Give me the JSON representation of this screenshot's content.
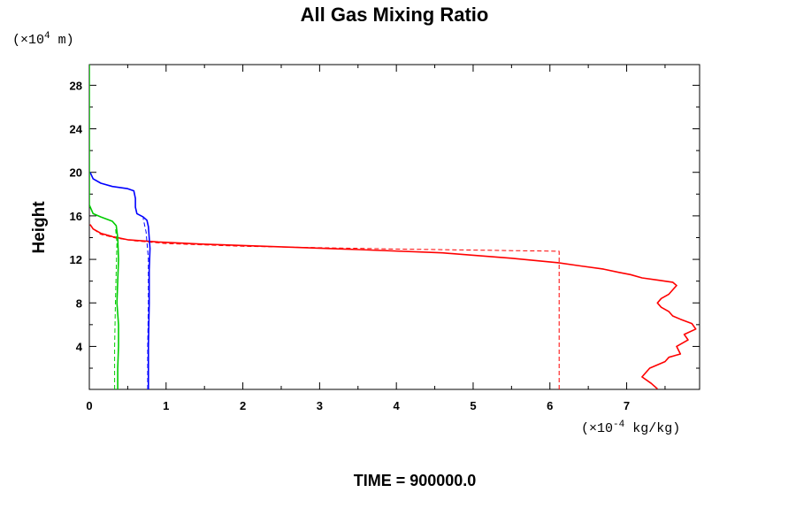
{
  "chart_data": {
    "type": "line",
    "title": "All Gas Mixing Ratio",
    "ylabel": "Height",
    "y_unit_prefix": "(×10",
    "y_unit_exp": "4",
    "y_unit_suffix": " m)",
    "x_unit_prefix": "(×10",
    "x_unit_exp": "-4",
    "x_unit_suffix": " kg/kg)",
    "xlim": [
      0,
      7.95
    ],
    "ylim": [
      0.05,
      29.9
    ],
    "x_ticks": [
      "0",
      "1",
      "2",
      "3",
      "4",
      "5",
      "6",
      "7"
    ],
    "y_ticks": [
      "4",
      "8",
      "12",
      "16",
      "20",
      "24",
      "28"
    ],
    "grid": false,
    "footer": "TIME = 900000.0",
    "series": [
      {
        "color": "#ff0000",
        "style": "solid",
        "x": [
          7.4,
          7.32,
          7.2,
          7.3,
          7.5,
          7.55,
          7.7,
          7.65,
          7.8,
          7.75,
          7.9,
          7.85,
          7.7,
          7.6,
          7.55,
          7.45,
          7.4,
          7.45,
          7.55,
          7.6,
          7.65,
          7.6,
          7.4,
          7.2,
          7.05,
          6.9,
          6.7,
          6.4,
          6.1,
          5.5,
          4.6,
          3.5,
          2.5,
          1.5,
          0.9,
          0.5,
          0.3,
          0.15,
          0.05,
          0.01
        ],
        "y": [
          0.1,
          0.6,
          1.2,
          2.0,
          2.6,
          3.0,
          3.3,
          4.0,
          4.6,
          5.1,
          5.6,
          6.1,
          6.5,
          6.8,
          7.2,
          7.6,
          8.0,
          8.4,
          8.8,
          9.2,
          9.6,
          9.9,
          10.1,
          10.3,
          10.6,
          10.8,
          11.1,
          11.4,
          11.7,
          12.1,
          12.6,
          12.9,
          13.15,
          13.4,
          13.6,
          13.8,
          14.1,
          14.4,
          14.8,
          15.2
        ]
      },
      {
        "color": "#ff0000",
        "style": "dashed",
        "x": [
          6.12,
          6.12,
          6.12,
          4.0,
          2.0,
          1.0,
          0.6,
          0.35,
          0.15,
          0.05,
          0.01
        ],
        "y": [
          0.05,
          6.0,
          12.75,
          12.95,
          13.2,
          13.45,
          13.7,
          13.95,
          14.3,
          14.8,
          15.2
        ]
      },
      {
        "color": "#0000ff",
        "style": "solid",
        "x": [
          0.77,
          0.77,
          0.78,
          0.78,
          0.79,
          0.78,
          0.77,
          0.75,
          0.7,
          0.62,
          0.6,
          0.6,
          0.58,
          0.5,
          0.3,
          0.15,
          0.05,
          0.01
        ],
        "y": [
          0.05,
          4.0,
          8.0,
          11.0,
          13.0,
          14.0,
          15.0,
          15.6,
          15.9,
          16.2,
          16.8,
          17.6,
          18.3,
          18.5,
          18.7,
          19.0,
          19.4,
          20.0
        ]
      },
      {
        "color": "#0000ff",
        "style": "dashed",
        "x": [
          0.76,
          0.76,
          0.77,
          0.77,
          0.74,
          0.7
        ],
        "y": [
          0.05,
          4.0,
          8.0,
          12.0,
          14.5,
          15.8
        ]
      },
      {
        "color": "#00cc00",
        "style": "solid",
        "x": [
          0.37,
          0.37,
          0.38,
          0.38,
          0.36,
          0.37,
          0.38,
          0.37,
          0.35,
          0.3,
          0.15,
          0.05,
          0.0,
          0.0
        ],
        "y": [
          0.05,
          2.0,
          4.0,
          6.0,
          8.0,
          10.0,
          12.0,
          14.0,
          15.1,
          15.5,
          15.9,
          16.2,
          17.0,
          29.9
        ]
      },
      {
        "color": "#00cc00",
        "style": "dashed",
        "x": [
          0.33,
          0.33,
          0.34,
          0.35,
          0.36,
          0.34
        ],
        "y": [
          0.05,
          4.0,
          8.0,
          11.0,
          13.5,
          15.0
        ]
      }
    ]
  }
}
